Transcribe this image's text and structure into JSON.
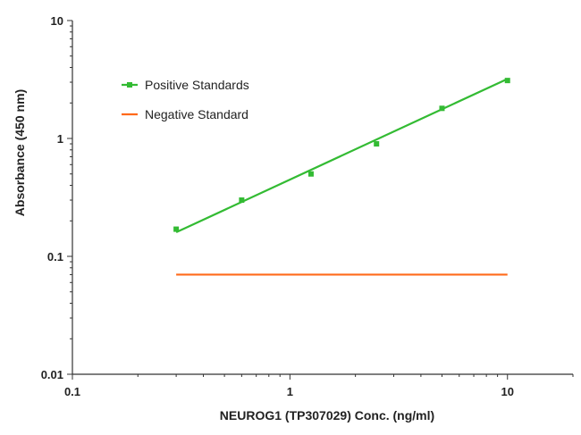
{
  "chart_data": {
    "type": "scatter",
    "xscale": "log",
    "yscale": "log",
    "xlim": [
      0.1,
      20
    ],
    "ylim": [
      0.01,
      10
    ],
    "xticks": [
      0.1,
      1,
      10
    ],
    "xtick_labels": [
      "0.1",
      "1",
      "10"
    ],
    "yticks": [
      0.01,
      0.1,
      1,
      10
    ],
    "ytick_labels": [
      "0.01",
      "0.1",
      "1",
      "10"
    ],
    "xlabel": "NEUROG1 (TP307029) Conc. (ng/ml)",
    "ylabel": "Absorbance (450 nm)",
    "grid": false,
    "legend_position": "top-left",
    "series": [
      {
        "name": "Positive Standards",
        "color": "#33bb33",
        "marker": "square",
        "x": [
          0.3,
          0.6,
          1.25,
          2.5,
          5,
          10
        ],
        "y": [
          0.17,
          0.3,
          0.5,
          0.9,
          1.8,
          3.1
        ],
        "fit": {
          "x": [
            0.3,
            10
          ],
          "y": [
            0.16,
            3.2
          ]
        }
      },
      {
        "name": "Negative Standard",
        "color": "#ff6a1a",
        "marker": "none",
        "x": [
          0.3,
          10
        ],
        "y": [
          0.07,
          0.07
        ]
      }
    ]
  }
}
